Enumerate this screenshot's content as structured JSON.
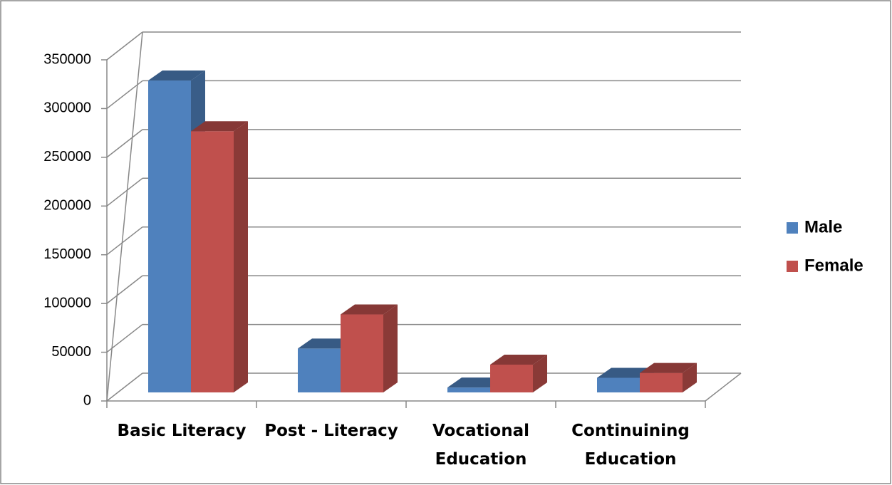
{
  "chart_data": {
    "type": "bar3d",
    "categories": [
      "Basic Literacy",
      "Post - Literacy",
      "Vocational Education",
      "Continuining Education"
    ],
    "series": [
      {
        "name": "Male",
        "color": "#4f81bd",
        "values": [
          320000,
          45000,
          5000,
          15000
        ]
      },
      {
        "name": "Female",
        "color": "#c0504d",
        "values": [
          268000,
          80000,
          28500,
          20000
        ]
      }
    ],
    "ylim": [
      0,
      350000
    ],
    "yticks": [
      0,
      50000,
      100000,
      150000,
      200000,
      250000,
      300000,
      350000
    ],
    "grid": true,
    "legend": "right"
  }
}
